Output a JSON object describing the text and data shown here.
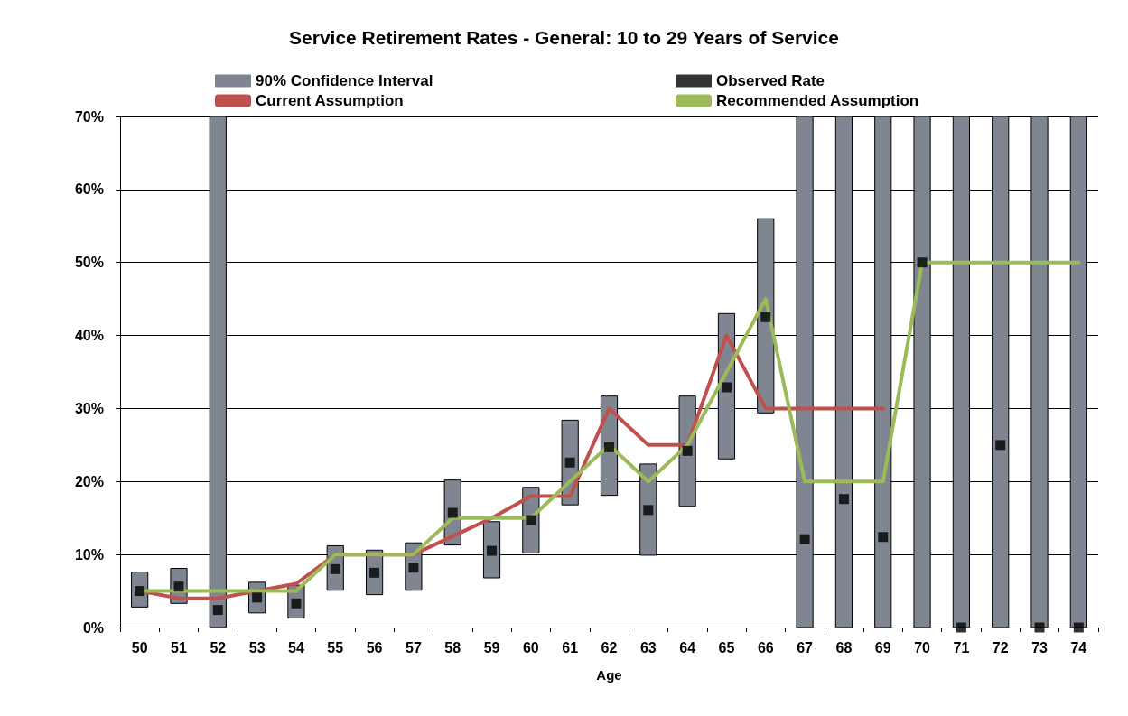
{
  "chart_data": {
    "type": "bar",
    "title": "Service Retirement Rates - General: 10 to 29 Years of Service",
    "xlabel": "Age",
    "categories": [
      "50",
      "51",
      "52",
      "53",
      "54",
      "55",
      "56",
      "57",
      "58",
      "59",
      "60",
      "61",
      "62",
      "63",
      "64",
      "65",
      "66",
      "67",
      "68",
      "69",
      "70",
      "71",
      "72",
      "73",
      "74"
    ],
    "series": [
      {
        "name": "90% Confidence Interval",
        "color": "#7f8691",
        "base": [
          2.8,
          3.3,
          0,
          2.0,
          1.3,
          5.1,
          4.5,
          5.1,
          11.3,
          6.8,
          10.2,
          16.8,
          18.1,
          9.9,
          16.6,
          23.1,
          29.4,
          0,
          0,
          0,
          0,
          0,
          0,
          0,
          0
        ],
        "values": [
          4.8,
          4.8,
          70,
          4.2,
          4.5,
          6.1,
          6.1,
          6.5,
          8.9,
          7.7,
          9.0,
          11.6,
          13.6,
          12.5,
          15.1,
          19.9,
          26.6,
          70,
          70,
          70,
          70,
          70,
          70,
          70,
          70
        ]
      },
      {
        "name": "Observed Rate",
        "type": "scatter",
        "marker": "square",
        "color": "#000000",
        "values": [
          5.0,
          5.6,
          2.4,
          4.1,
          3.3,
          8.0,
          7.5,
          8.2,
          15.7,
          10.5,
          14.7,
          22.6,
          24.7,
          16.1,
          24.2,
          32.9,
          42.5,
          12.1,
          17.6,
          12.4,
          50,
          0,
          25,
          0,
          0
        ]
      },
      {
        "name": "Current Assumption",
        "type": "line",
        "marker": "none",
        "color": "#c0504d",
        "values": [
          5,
          4,
          4,
          5,
          6,
          10,
          10,
          10,
          12.5,
          15,
          18,
          18,
          30,
          25,
          25,
          40,
          30,
          30,
          30,
          30,
          null,
          null,
          null,
          null,
          null
        ]
      },
      {
        "name": "Recommended Assumption",
        "type": "line",
        "marker": "none",
        "color": "#9bbb59",
        "values": [
          5,
          5,
          5,
          5,
          5,
          10,
          10,
          10,
          15,
          15,
          15,
          20,
          25,
          20,
          25,
          35,
          45,
          20,
          20,
          20,
          50,
          50,
          50,
          50,
          50
        ]
      }
    ],
    "ylim": [
      0,
      70
    ],
    "yticks": [
      {
        "value": 0,
        "label": "0%"
      },
      {
        "value": 10,
        "label": "10%"
      },
      {
        "value": 20,
        "label": "20%"
      },
      {
        "value": 30,
        "label": "30%"
      },
      {
        "value": 40,
        "label": "40%"
      },
      {
        "value": 50,
        "label": "50%"
      },
      {
        "value": 60,
        "label": "60%"
      },
      {
        "value": 70,
        "label": "70%"
      }
    ],
    "grid": "y",
    "legend": "top"
  }
}
